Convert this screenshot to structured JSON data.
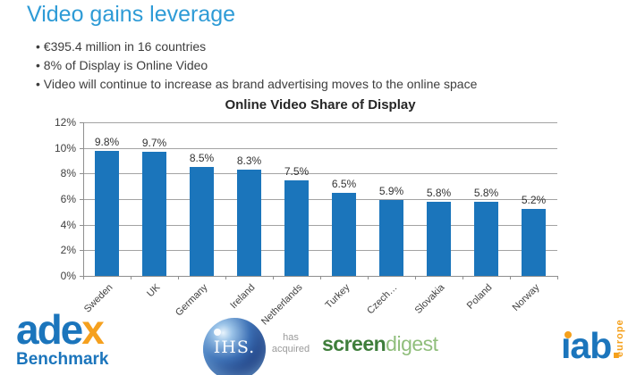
{
  "slide": {
    "title": "Video gains leverage",
    "bullets": [
      "€395.4 million in 16 countries",
      "8% of Display is Online Video",
      "Video will continue to increase as brand advertising moves to the online space"
    ]
  },
  "chart_data": {
    "type": "bar",
    "title": "Online Video Share of Display",
    "categories": [
      "Sweden",
      "UK",
      "Germany",
      "Ireland",
      "Netherlands",
      "Turkey",
      "Czech…",
      "Slovakia",
      "Poland",
      "Norway"
    ],
    "values": [
      9.8,
      9.7,
      8.5,
      8.3,
      7.5,
      6.5,
      5.9,
      5.8,
      5.8,
      5.2
    ],
    "data_labels": [
      "9.8%",
      "9.7%",
      "8.5%",
      "8.3%",
      "7.5%",
      "6.5%",
      "5.9%",
      "5.8%",
      "5.8%",
      "5.2%"
    ],
    "xlabel": "",
    "ylabel": "",
    "ylim": [
      0,
      12
    ],
    "ytick_step": 2,
    "ytick_labels": [
      "0%",
      "2%",
      "4%",
      "6%",
      "8%",
      "10%",
      "12%"
    ],
    "grid": true,
    "legend": "none",
    "bar_color": "#1B75BB"
  },
  "footer": {
    "adex": {
      "word_main": "ade",
      "word_x": "x",
      "subtitle": "Benchmark"
    },
    "ihs": {
      "sphere_text": "IHS.",
      "caption_line1": "has",
      "caption_line2": "acquired"
    },
    "screendigest": {
      "part1": "screen",
      "part2": "digest"
    },
    "iab": {
      "body": "ıab",
      "period": ".",
      "vertical_text": "europe"
    }
  },
  "colors": {
    "title_blue": "#2E9BD6",
    "bar_blue": "#1B75BB",
    "adex_blue": "#1B75BC",
    "adex_orange": "#F5A01E",
    "screen_green_dark": "#3F7E3B",
    "screen_green_light": "#90BE7C",
    "iab_orange": "#F5A01B"
  }
}
